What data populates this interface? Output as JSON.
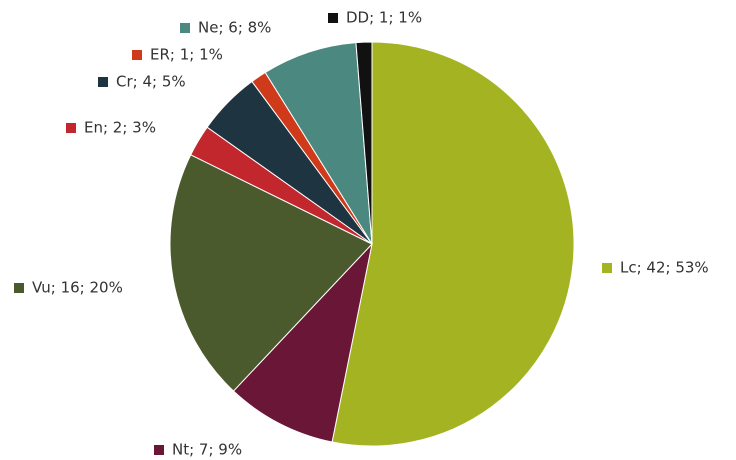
{
  "chart_data": {
    "type": "pie",
    "categories": [
      "Lc",
      "Nt",
      "Vu",
      "En",
      "Cr",
      "ER",
      "Ne",
      "DD"
    ],
    "values": [
      42,
      7,
      16,
      2,
      4,
      1,
      6,
      1
    ],
    "value_labels": [
      "Lc; 42; 53%",
      "Nt; 7; 9%",
      "Vu; 16; 20%",
      "En; 2; 3%",
      "Cr; 4; 5%",
      "ER; 1; 1%",
      "Ne; 6; 8%",
      "DD; 1; 1%"
    ],
    "colors": [
      "#a3b321",
      "#6a1636",
      "#4b5a2c",
      "#c1272d",
      "#1f3441",
      "#cf3a1b",
      "#4b8980",
      "#111111"
    ]
  }
}
